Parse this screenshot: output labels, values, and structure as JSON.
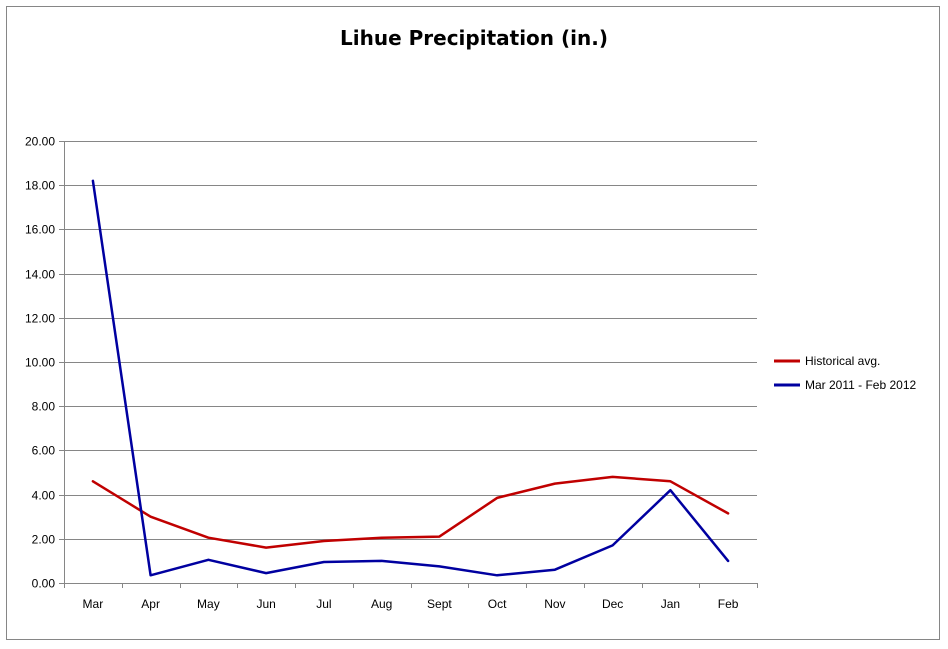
{
  "chart_data": {
    "type": "line",
    "title": "Lihue Precipitation (in.)",
    "xlabel": "",
    "ylabel": "",
    "categories": [
      "Mar",
      "Apr",
      "May",
      "Jun",
      "Jul",
      "Aug",
      "Sept",
      "Oct",
      "Nov",
      "Dec",
      "Jan",
      "Feb"
    ],
    "ylim": [
      0,
      20
    ],
    "yticks": [
      "0.00",
      "2.00",
      "4.00",
      "6.00",
      "8.00",
      "10.00",
      "12.00",
      "14.00",
      "16.00",
      "18.00",
      "20.00"
    ],
    "grid": true,
    "legend_position": "right",
    "series": [
      {
        "name": "Historical avg.",
        "color": "#C00000",
        "values": [
          4.6,
          3.0,
          2.05,
          1.6,
          1.9,
          2.05,
          2.1,
          3.85,
          4.5,
          4.8,
          4.6,
          3.15
        ]
      },
      {
        "name": "Mar 2011 - Feb 2012",
        "color": "#0000A0",
        "values": [
          18.2,
          0.35,
          1.05,
          0.45,
          0.95,
          1.0,
          0.75,
          0.35,
          0.6,
          1.7,
          4.2,
          1.0
        ]
      }
    ]
  }
}
